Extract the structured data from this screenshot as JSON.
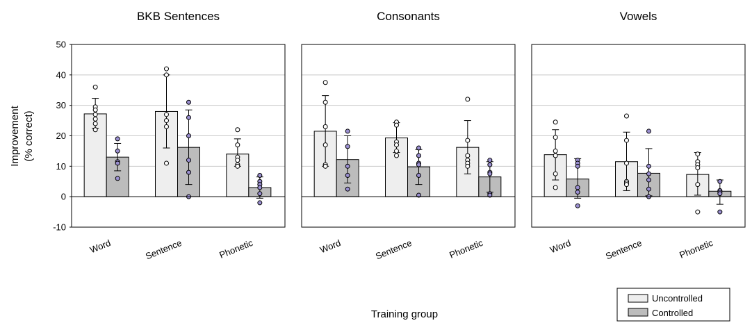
{
  "figure": {
    "ylabel_line1": "Improvement",
    "ylabel_line2": "(% correct)",
    "xlabel": "Training group"
  },
  "colors": {
    "uncontrolled_fill": "#eeeeee",
    "controlled_fill": "#bcbcbc",
    "controlled_point": "#9a8fd0",
    "uncontrolled_point": "#ffffff",
    "grid": "#c8c8c8"
  },
  "legend": {
    "uncontrolled": "Uncontrolled",
    "controlled": "Controlled"
  },
  "chart_data": [
    {
      "type": "bar",
      "title": "BKB Sentences",
      "categories": [
        "Word",
        "Sentence",
        "Phonetic"
      ],
      "ylim": [
        -10,
        50
      ],
      "yticks": [
        -10,
        0,
        10,
        20,
        30,
        40,
        50
      ],
      "grid": true,
      "legend_position": "bottom-right",
      "series": [
        {
          "name": "Uncontrolled",
          "values": [
            27.2,
            28,
            14
          ],
          "err_low": [
            22.5,
            16,
            10
          ],
          "err_high": [
            32.3,
            40,
            19
          ],
          "points": [
            [
              36,
              29.5,
              28.5,
              27,
              25.5,
              24,
              22
            ],
            [
              42,
              40,
              27,
              25,
              23,
              11
            ],
            [
              22,
              17,
              13,
              12,
              10.5,
              10
            ]
          ]
        },
        {
          "name": "Controlled",
          "values": [
            13,
            16.2,
            3
          ],
          "err_low": [
            8.5,
            4,
            -0.5
          ],
          "err_high": [
            17.5,
            28.5,
            6.5
          ],
          "points": [
            [
              19,
              15,
              11.5,
              11,
              6
            ],
            [
              31,
              26,
              20,
              12,
              8,
              0
            ],
            [
              7,
              5,
              4,
              3,
              1,
              -2
            ]
          ]
        }
      ]
    },
    {
      "type": "bar",
      "title": "Consonants",
      "categories": [
        "Word",
        "Sentence",
        "Phonetic"
      ],
      "ylim": [
        -10,
        50
      ],
      "grid": true,
      "series": [
        {
          "name": "Uncontrolled",
          "values": [
            21.5,
            19.3,
            16.2
          ],
          "err_low": [
            10,
            14.5,
            7.5
          ],
          "err_high": [
            33.2,
            24.3,
            25
          ],
          "points": [
            [
              37.5,
              31,
              23,
              17,
              10.5,
              10
            ],
            [
              24.5,
              23.5,
              18,
              17,
              15,
              13.5
            ],
            [
              32,
              18.5,
              13.5,
              12,
              11,
              10
            ]
          ]
        },
        {
          "name": "Controlled",
          "values": [
            12.2,
            9.8,
            6.5
          ],
          "err_low": [
            4.5,
            4,
            1.5
          ],
          "err_high": [
            20,
            15.5,
            11.5
          ],
          "points": [
            [
              21.5,
              16.5,
              10,
              7,
              2.5
            ],
            [
              16,
              13.5,
              11,
              10.5,
              7,
              0.5
            ],
            [
              12,
              10.5,
              8,
              7.5,
              1,
              0.5
            ]
          ]
        }
      ]
    },
    {
      "type": "bar",
      "title": "Vowels",
      "categories": [
        "Word",
        "Sentence",
        "Phonetic"
      ],
      "ylim": [
        -10,
        50
      ],
      "grid": true,
      "series": [
        {
          "name": "Uncontrolled",
          "values": [
            13.8,
            11.5,
            7.3
          ],
          "err_low": [
            5.5,
            2,
            0.5
          ],
          "err_high": [
            22,
            21.2,
            14.5
          ],
          "points": [
            [
              24.5,
              19.5,
              15,
              13.5,
              7.5,
              3
            ],
            [
              26.5,
              18.5,
              11,
              5,
              4.5,
              4
            ],
            [
              14,
              11.5,
              10.5,
              9.5,
              4,
              -5
            ]
          ]
        },
        {
          "name": "Controlled",
          "values": [
            5.8,
            7.7,
            1.8
          ],
          "err_low": [
            -0.5,
            0.3,
            -2.5
          ],
          "err_high": [
            12.5,
            15.8,
            5.5
          ],
          "points": [
            [
              12,
              11,
              10,
              3,
              1.5,
              -3
            ],
            [
              21.5,
              10,
              7.5,
              5.5,
              2.5,
              0
            ],
            [
              5,
              2,
              1.5,
              1,
              -5
            ]
          ]
        }
      ]
    }
  ]
}
